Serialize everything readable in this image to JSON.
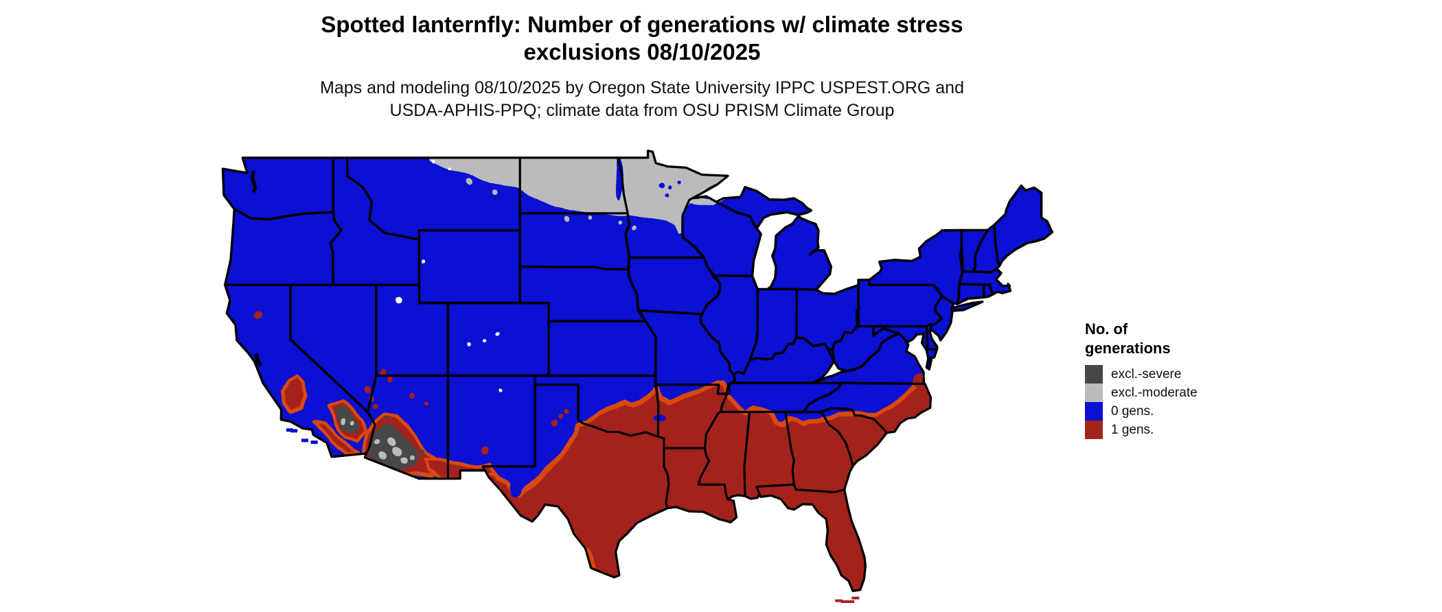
{
  "title": {
    "line1": "Spotted lanternfly: Number of generations w/ climate stress",
    "line2": "exclusions 08/10/2025"
  },
  "subtitle": {
    "line1": "Maps and modeling 08/10/2025 by Oregon State University IPPC USPEST.ORG and",
    "line2": "USDA-APHIS-PPQ; climate data from OSU PRISM Climate Group"
  },
  "legend": {
    "title_line1": "No. of",
    "title_line2": "generations",
    "items": [
      {
        "label": "excl.-severe",
        "color": "#474747"
      },
      {
        "label": "excl.-moderate",
        "color": "#bbbbbc"
      },
      {
        "label": "0 gens.",
        "color": "#0b10d2"
      },
      {
        "label": "1 gens.",
        "color": "#a3241a"
      }
    ]
  },
  "palette": {
    "background": "#ffffff",
    "border": "#000000",
    "excl_severe": "#474747",
    "excl_moderate": "#bbbbbc",
    "gens0": "#0b10d2",
    "gens1": "#a3241a",
    "transition": "#d9480f"
  },
  "map": {
    "type": "choropleth-raster",
    "region": "contiguous United States",
    "regions_summary": {
      "excl_severe_areas": "southwestern Arizona and southeastern California desert",
      "excl_moderate_areas": "northern Minnesota, North Dakota, northeastern Montana and the Lake Superior shore",
      "gens_0_areas": "most of the northern, central and western United States",
      "gens_1_areas": "southern tier: central/southern California patches, southern Arizona and New Mexico, Texas, the Gulf states, Florida and the southern Atlantic coastal plain"
    }
  }
}
